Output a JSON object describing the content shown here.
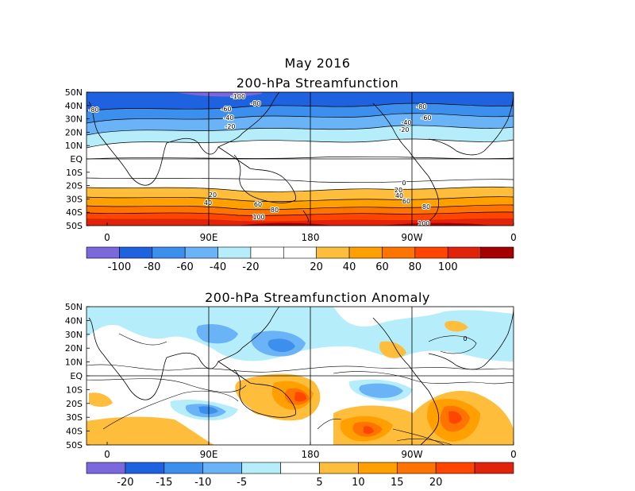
{
  "figure": {
    "month_title": "May 2016",
    "panel1_title": "200-hPa Streamfunction",
    "panel2_title": "200-hPa Streamfunction Anomaly"
  },
  "lat_labels": [
    "50N",
    "40N",
    "30N",
    "20N",
    "10N",
    "EQ",
    "10S",
    "20S",
    "30S",
    "40S",
    "50S"
  ],
  "lon_labels": [
    "0",
    "90E",
    "180",
    "90W",
    "0"
  ],
  "panel1": {
    "contour_labels": [
      "-100",
      "-80",
      "-80",
      "-60",
      "-40",
      "-20",
      "-80",
      "-60",
      "-40",
      "-20",
      "0",
      "20",
      "40",
      "20",
      "40",
      "60",
      "80",
      "100",
      "60",
      "80",
      "100"
    ],
    "colorbar": {
      "colors": [
        "#7b68dd",
        "#1f62df",
        "#3c8fed",
        "#6bb3f7",
        "#b5edfb",
        "#ffffff",
        "#ffffff",
        "#ffbd3c",
        "#ff9f00",
        "#ff7400",
        "#ff4500",
        "#e0230a",
        "#a50000"
      ],
      "labels": [
        "-100",
        "-80",
        "-60",
        "-40",
        "-20",
        "20",
        "40",
        "60",
        "80",
        "100"
      ]
    }
  },
  "panel2": {
    "contour_labels": [
      "0"
    ],
    "colorbar": {
      "colors": [
        "#7b68dd",
        "#1f62df",
        "#3c8fed",
        "#6bb3f7",
        "#b5edfb",
        "#ffffff",
        "#ffbd3c",
        "#ff9f00",
        "#ff7400",
        "#ff4500",
        "#e0230a"
      ],
      "labels": [
        "-20",
        "-15",
        "-10",
        "-5",
        "5",
        "10",
        "15",
        "20"
      ]
    }
  }
}
